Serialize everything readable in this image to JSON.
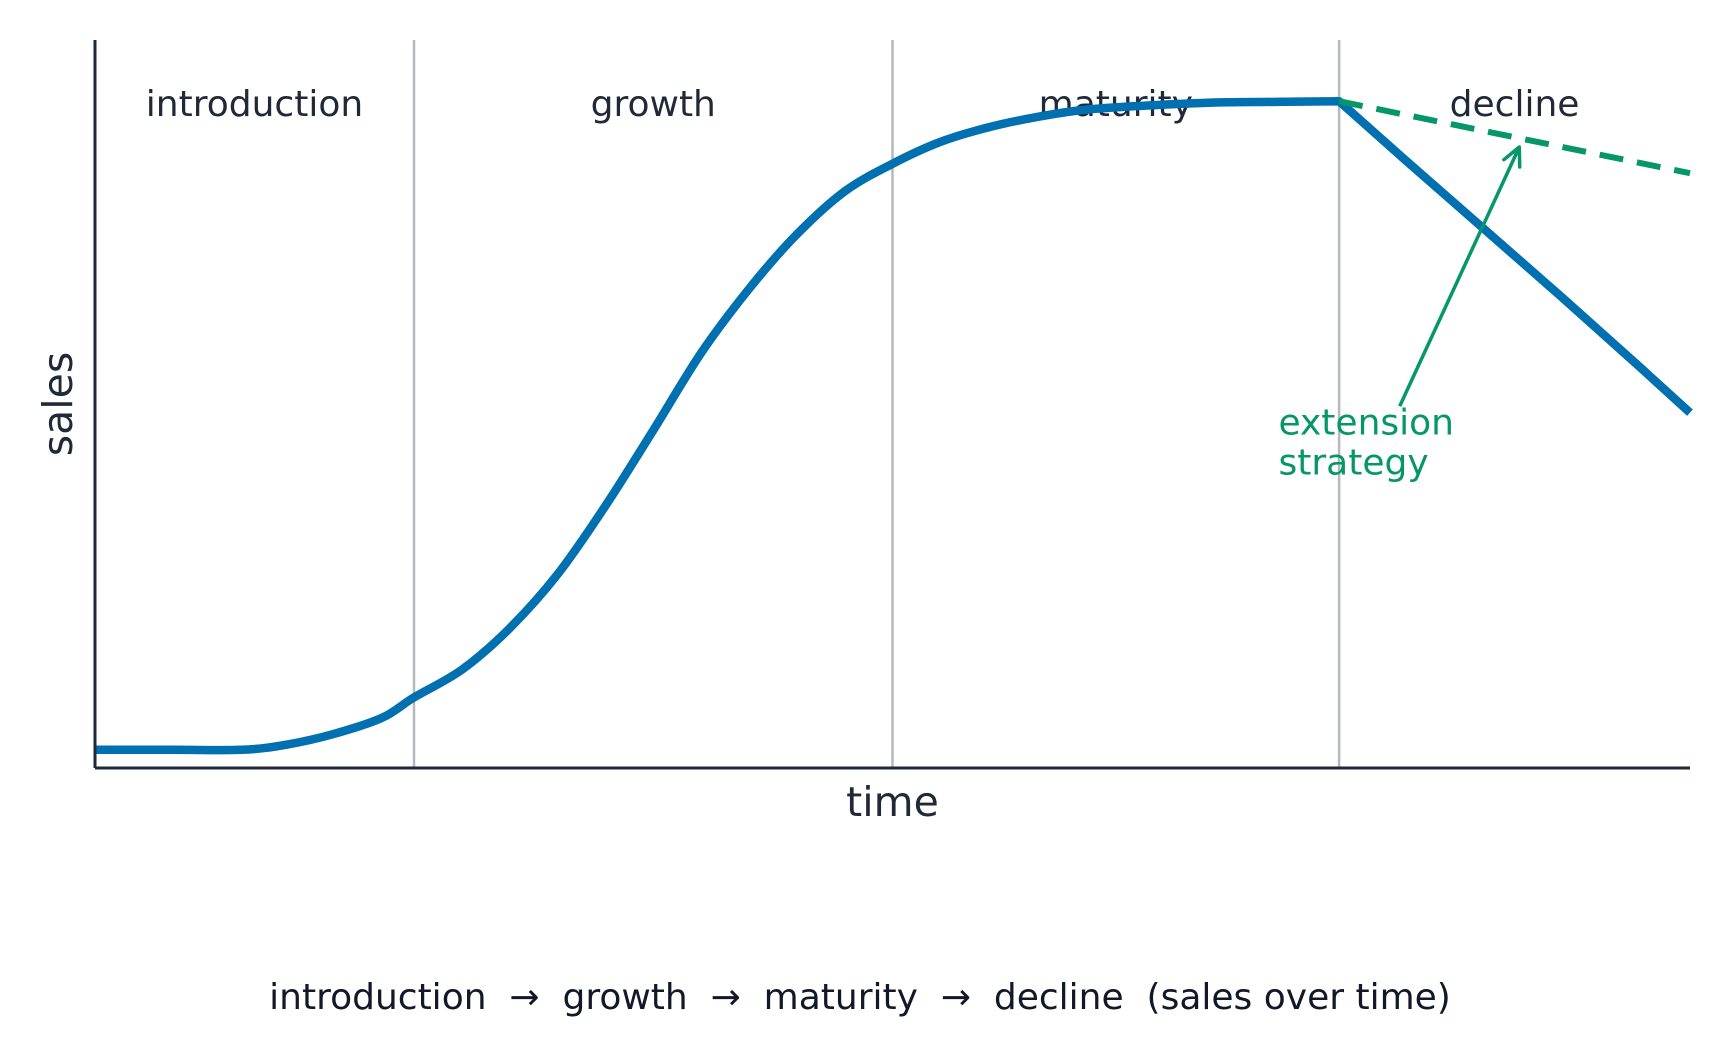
{
  "colors": {
    "sales_line": "#0070B0",
    "extension_line": "#059669",
    "axis": "#1f2937",
    "stage_divider": "#b5b8bd",
    "text": "#1f2937"
  },
  "chart_data": {
    "type": "line",
    "title": "",
    "xlabel": "time",
    "ylabel": "sales",
    "xlim": [
      0,
      100
    ],
    "ylim": [
      0,
      100
    ],
    "grid": false,
    "ticks": "none",
    "stages": [
      {
        "label": "introduction",
        "start": 0,
        "end": 20
      },
      {
        "label": "growth",
        "start": 20,
        "end": 50
      },
      {
        "label": "maturity",
        "start": 50,
        "end": 78
      },
      {
        "label": "decline",
        "start": 78,
        "end": 100
      }
    ],
    "series": [
      {
        "name": "",
        "style": "solid",
        "color_key": "sales_line",
        "points": [
          [
            0,
            2.5
          ],
          [
            5,
            2.5
          ],
          [
            9.2,
            2.5
          ],
          [
            12,
            3.2
          ],
          [
            15,
            4.7
          ],
          [
            18,
            6.9
          ],
          [
            20,
            9.7
          ],
          [
            23,
            13.5
          ],
          [
            26,
            19.2
          ],
          [
            29,
            26.6
          ],
          [
            32,
            36.0
          ],
          [
            35,
            46.4
          ],
          [
            38,
            57.0
          ],
          [
            41,
            65.8
          ],
          [
            44,
            73.3
          ],
          [
            47,
            79.2
          ],
          [
            50,
            83.0
          ],
          [
            53,
            86.0
          ],
          [
            56,
            88.0
          ],
          [
            59,
            89.4
          ],
          [
            62,
            90.4
          ],
          [
            66,
            91.0
          ],
          [
            70,
            91.4
          ],
          [
            74,
            91.5
          ],
          [
            78,
            91.6
          ],
          [
            82,
            83.8
          ],
          [
            87,
            74.2
          ],
          [
            92,
            64.6
          ],
          [
            97,
            54.8
          ],
          [
            100,
            48.8
          ]
        ]
      },
      {
        "name": "",
        "style": "dashed",
        "color_key": "extension_line",
        "points": [
          [
            78,
            91.6
          ],
          [
            100,
            81.7
          ]
        ]
      }
    ],
    "annotations": [
      {
        "text_lines": [
          "extension",
          "strategy"
        ],
        "text_at": [
          74.2,
          45.8
        ],
        "arrow_from": [
          81.8,
          49.7
        ],
        "arrow_to": [
          89.3,
          85.3
        ],
        "color_key": "extension_line"
      }
    ]
  },
  "caption": "introduction  →  growth  →  maturity  →  decline  (sales over time)"
}
